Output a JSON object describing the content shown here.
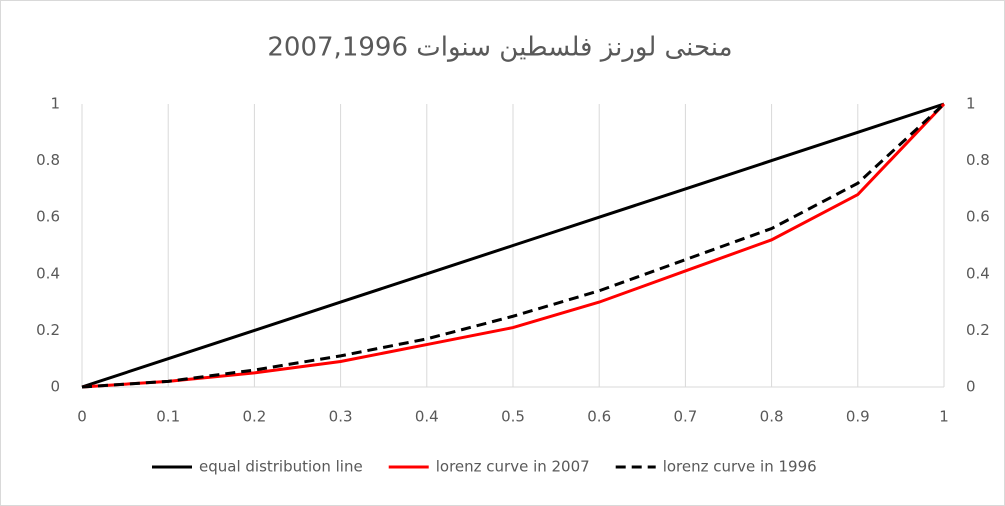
{
  "chart_data": {
    "type": "line",
    "title": "منحنى لورنز فلسطين سنوات 2007,1996",
    "x": [
      0,
      0.1,
      0.2,
      0.3,
      0.4,
      0.5,
      0.6,
      0.7,
      0.8,
      0.9,
      1
    ],
    "series": [
      {
        "name": "equal distribution line",
        "color": "#000000",
        "line_style": "solid",
        "values": [
          0,
          0.1,
          0.2,
          0.3,
          0.4,
          0.5,
          0.6,
          0.7,
          0.8,
          0.9,
          1
        ]
      },
      {
        "name": "lorenz curve in 2007",
        "color": "#ff0000",
        "line_style": "solid",
        "values": [
          0,
          0.02,
          0.05,
          0.09,
          0.15,
          0.21,
          0.3,
          0.41,
          0.52,
          0.68,
          1
        ]
      },
      {
        "name": "lorenz curve in 1996",
        "color": "#000000",
        "line_style": "dashed",
        "values": [
          0,
          0.02,
          0.06,
          0.11,
          0.17,
          0.25,
          0.34,
          0.45,
          0.56,
          0.72,
          1
        ]
      }
    ],
    "xlim": [
      0,
      1
    ],
    "xticks": [
      0,
      0.1,
      0.2,
      0.3,
      0.4,
      0.5,
      0.6,
      0.7,
      0.8,
      0.9,
      1
    ],
    "ylim": [
      0,
      1
    ],
    "yticks": [
      0,
      0.2,
      0.4,
      0.6,
      0.8,
      1
    ],
    "y2lim": [
      0,
      1
    ],
    "y2ticks": [
      0,
      0.2,
      0.4,
      0.6,
      0.8,
      1
    ],
    "grid": "x",
    "legend": "bottom"
  }
}
